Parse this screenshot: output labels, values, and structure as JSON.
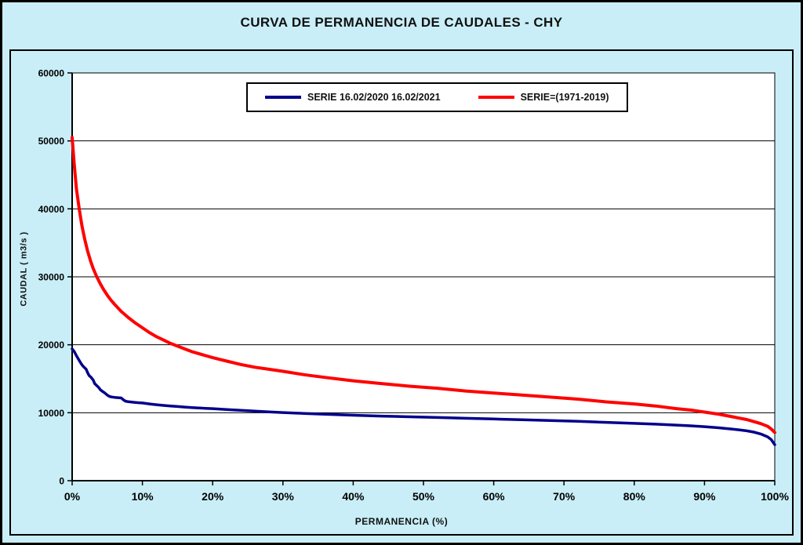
{
  "chart_data": {
    "type": "line",
    "title": "CURVA DE PERMANENCIA DE CAUDALES - CHY",
    "xlabel": "PERMANENCIA (%)",
    "ylabel": "CAUDAL ( m3/s )",
    "xlim": [
      0,
      100
    ],
    "ylim": [
      0,
      60000
    ],
    "x_ticks": [
      0,
      10,
      20,
      30,
      40,
      50,
      60,
      70,
      80,
      90,
      100
    ],
    "x_tick_suffix": "%",
    "y_ticks": [
      0,
      10000,
      20000,
      30000,
      40000,
      50000,
      60000
    ],
    "grid": "horizontal",
    "legend_position": "top-center-inside",
    "background_color": "#c9eef7",
    "plot_background": "#ffffff",
    "series": [
      {
        "name": "SERIE 16.02/2020 16.02/2021",
        "color": "#00008b",
        "width": 3.5,
        "points": [
          [
            0,
            19400
          ],
          [
            0.3,
            19000
          ],
          [
            0.6,
            18400
          ],
          [
            1,
            17700
          ],
          [
            1.3,
            17200
          ],
          [
            1.6,
            16800
          ],
          [
            2,
            16400
          ],
          [
            2.2,
            15900
          ],
          [
            2.4,
            15500
          ],
          [
            2.7,
            15200
          ],
          [
            3,
            14800
          ],
          [
            3.2,
            14300
          ],
          [
            3.5,
            14000
          ],
          [
            3.8,
            13700
          ],
          [
            4,
            13400
          ],
          [
            4.3,
            13150
          ],
          [
            4.6,
            12950
          ],
          [
            5,
            12600
          ],
          [
            5.3,
            12400
          ],
          [
            5.6,
            12320
          ],
          [
            6,
            12270
          ],
          [
            6.5,
            12220
          ],
          [
            7,
            12170
          ],
          [
            7.3,
            11900
          ],
          [
            7.6,
            11700
          ],
          [
            8,
            11620
          ],
          [
            8.5,
            11560
          ],
          [
            9,
            11510
          ],
          [
            9.5,
            11470
          ],
          [
            10,
            11430
          ],
          [
            11,
            11300
          ],
          [
            12,
            11180
          ],
          [
            13,
            11080
          ],
          [
            14,
            11000
          ],
          [
            15,
            10920
          ],
          [
            16,
            10840
          ],
          [
            17,
            10770
          ],
          [
            18,
            10710
          ],
          [
            19,
            10650
          ],
          [
            20,
            10600
          ],
          [
            22,
            10470
          ],
          [
            24,
            10350
          ],
          [
            26,
            10240
          ],
          [
            28,
            10130
          ],
          [
            30,
            10030
          ],
          [
            33,
            9900
          ],
          [
            36,
            9780
          ],
          [
            40,
            9630
          ],
          [
            44,
            9510
          ],
          [
            48,
            9400
          ],
          [
            52,
            9300
          ],
          [
            56,
            9190
          ],
          [
            60,
            9080
          ],
          [
            64,
            8970
          ],
          [
            68,
            8860
          ],
          [
            72,
            8730
          ],
          [
            76,
            8590
          ],
          [
            80,
            8440
          ],
          [
            83,
            8320
          ],
          [
            86,
            8180
          ],
          [
            88,
            8080
          ],
          [
            90,
            7950
          ],
          [
            92,
            7790
          ],
          [
            94,
            7590
          ],
          [
            95,
            7480
          ],
          [
            96,
            7340
          ],
          [
            97,
            7150
          ],
          [
            98,
            6880
          ],
          [
            99,
            6450
          ],
          [
            99.5,
            6050
          ],
          [
            100,
            5300
          ]
        ]
      },
      {
        "name": "SERIE=(1971-2019)",
        "color": "#ff0000",
        "width": 4,
        "points": [
          [
            0,
            50500
          ],
          [
            0.3,
            46500
          ],
          [
            0.6,
            43000
          ],
          [
            1,
            40000
          ],
          [
            1.4,
            37500
          ],
          [
            1.8,
            35500
          ],
          [
            2.2,
            33800
          ],
          [
            2.6,
            32400
          ],
          [
            3,
            31200
          ],
          [
            3.5,
            30000
          ],
          [
            4,
            29000
          ],
          [
            4.5,
            28100
          ],
          [
            5,
            27300
          ],
          [
            5.5,
            26600
          ],
          [
            6,
            26000
          ],
          [
            7,
            24900
          ],
          [
            8,
            24000
          ],
          [
            9,
            23200
          ],
          [
            10,
            22500
          ],
          [
            11,
            21800
          ],
          [
            12,
            21200
          ],
          [
            13,
            20700
          ],
          [
            14,
            20200
          ],
          [
            15,
            19800
          ],
          [
            16,
            19400
          ],
          [
            17,
            19000
          ],
          [
            18,
            18700
          ],
          [
            19,
            18400
          ],
          [
            20,
            18100
          ],
          [
            22,
            17600
          ],
          [
            24,
            17100
          ],
          [
            26,
            16700
          ],
          [
            28,
            16400
          ],
          [
            30,
            16100
          ],
          [
            33,
            15600
          ],
          [
            36,
            15200
          ],
          [
            40,
            14700
          ],
          [
            44,
            14300
          ],
          [
            48,
            13900
          ],
          [
            52,
            13600
          ],
          [
            56,
            13200
          ],
          [
            60,
            12900
          ],
          [
            64,
            12600
          ],
          [
            68,
            12300
          ],
          [
            72,
            12000
          ],
          [
            76,
            11600
          ],
          [
            80,
            11300
          ],
          [
            83,
            11000
          ],
          [
            86,
            10600
          ],
          [
            88,
            10400
          ],
          [
            90,
            10100
          ],
          [
            92,
            9800
          ],
          [
            94,
            9400
          ],
          [
            95,
            9200
          ],
          [
            96,
            9000
          ],
          [
            97,
            8700
          ],
          [
            98,
            8400
          ],
          [
            99,
            8000
          ],
          [
            99.5,
            7600
          ],
          [
            100,
            7100
          ]
        ]
      }
    ]
  }
}
